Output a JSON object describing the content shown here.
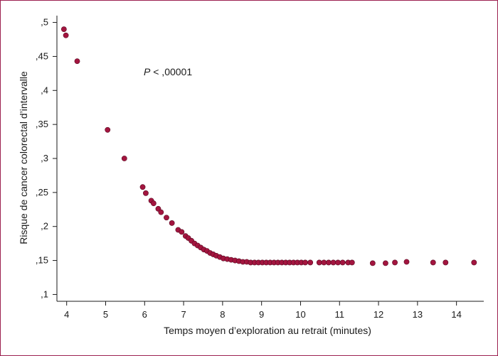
{
  "chart_data": {
    "type": "scatter",
    "xlabel": "Temps moyen d’exploration au retrait (minutes)",
    "ylabel": "Risque de cancer colorectal d’intervalle",
    "annotation": {
      "italic": "P",
      "rest": " < ,00001"
    },
    "xlim": [
      3.75,
      14.7
    ],
    "ylim": [
      0.09,
      0.51
    ],
    "x_ticks": [
      {
        "value": 4,
        "label": "4"
      },
      {
        "value": 5,
        "label": "5"
      },
      {
        "value": 6,
        "label": "6"
      },
      {
        "value": 7,
        "label": "7"
      },
      {
        "value": 8,
        "label": "8"
      },
      {
        "value": 9,
        "label": "9"
      },
      {
        "value": 10,
        "label": "10"
      },
      {
        "value": 11,
        "label": "11"
      },
      {
        "value": 12,
        "label": "12"
      },
      {
        "value": 13,
        "label": "13"
      },
      {
        "value": 14,
        "label": "14"
      }
    ],
    "y_ticks": [
      {
        "value": 0.1,
        "label": ",1"
      },
      {
        "value": 0.15,
        "label": ",15"
      },
      {
        "value": 0.2,
        "label": ",2"
      },
      {
        "value": 0.25,
        "label": ",25"
      },
      {
        "value": 0.3,
        "label": ",3"
      },
      {
        "value": 0.35,
        "label": ",35"
      },
      {
        "value": 0.4,
        "label": ",4"
      },
      {
        "value": 0.45,
        "label": ",45"
      },
      {
        "value": 0.5,
        "label": ",5"
      }
    ],
    "grid": false,
    "marker_color": "#a3153f",
    "points": [
      {
        "x": 3.93,
        "y": 0.49
      },
      {
        "x": 3.98,
        "y": 0.481
      },
      {
        "x": 4.27,
        "y": 0.443
      },
      {
        "x": 5.05,
        "y": 0.342
      },
      {
        "x": 5.48,
        "y": 0.3
      },
      {
        "x": 5.95,
        "y": 0.258
      },
      {
        "x": 6.03,
        "y": 0.249
      },
      {
        "x": 6.17,
        "y": 0.238
      },
      {
        "x": 6.23,
        "y": 0.234
      },
      {
        "x": 6.35,
        "y": 0.226
      },
      {
        "x": 6.42,
        "y": 0.221
      },
      {
        "x": 6.56,
        "y": 0.213
      },
      {
        "x": 6.7,
        "y": 0.205
      },
      {
        "x": 6.86,
        "y": 0.195
      },
      {
        "x": 6.95,
        "y": 0.192
      },
      {
        "x": 7.05,
        "y": 0.186
      },
      {
        "x": 7.12,
        "y": 0.183
      },
      {
        "x": 7.2,
        "y": 0.179
      },
      {
        "x": 7.28,
        "y": 0.175
      },
      {
        "x": 7.36,
        "y": 0.172
      },
      {
        "x": 7.44,
        "y": 0.169
      },
      {
        "x": 7.52,
        "y": 0.166
      },
      {
        "x": 7.6,
        "y": 0.164
      },
      {
        "x": 7.68,
        "y": 0.161
      },
      {
        "x": 7.76,
        "y": 0.159
      },
      {
        "x": 7.84,
        "y": 0.157
      },
      {
        "x": 7.93,
        "y": 0.155
      },
      {
        "x": 8.02,
        "y": 0.153
      },
      {
        "x": 8.12,
        "y": 0.152
      },
      {
        "x": 8.22,
        "y": 0.151
      },
      {
        "x": 8.32,
        "y": 0.15
      },
      {
        "x": 8.42,
        "y": 0.149
      },
      {
        "x": 8.52,
        "y": 0.148
      },
      {
        "x": 8.62,
        "y": 0.148
      },
      {
        "x": 8.72,
        "y": 0.147
      },
      {
        "x": 8.82,
        "y": 0.147
      },
      {
        "x": 8.92,
        "y": 0.147
      },
      {
        "x": 9.02,
        "y": 0.147
      },
      {
        "x": 9.12,
        "y": 0.147
      },
      {
        "x": 9.22,
        "y": 0.147
      },
      {
        "x": 9.32,
        "y": 0.147
      },
      {
        "x": 9.42,
        "y": 0.147
      },
      {
        "x": 9.52,
        "y": 0.147
      },
      {
        "x": 9.62,
        "y": 0.147
      },
      {
        "x": 9.72,
        "y": 0.147
      },
      {
        "x": 9.82,
        "y": 0.147
      },
      {
        "x": 9.92,
        "y": 0.147
      },
      {
        "x": 10.02,
        "y": 0.147
      },
      {
        "x": 10.12,
        "y": 0.147
      },
      {
        "x": 10.25,
        "y": 0.147
      },
      {
        "x": 10.48,
        "y": 0.147
      },
      {
        "x": 10.6,
        "y": 0.147
      },
      {
        "x": 10.72,
        "y": 0.147
      },
      {
        "x": 10.84,
        "y": 0.147
      },
      {
        "x": 10.96,
        "y": 0.147
      },
      {
        "x": 11.08,
        "y": 0.147
      },
      {
        "x": 11.22,
        "y": 0.147
      },
      {
        "x": 11.32,
        "y": 0.147
      },
      {
        "x": 11.85,
        "y": 0.146
      },
      {
        "x": 12.18,
        "y": 0.146
      },
      {
        "x": 12.42,
        "y": 0.147
      },
      {
        "x": 12.72,
        "y": 0.148
      },
      {
        "x": 13.4,
        "y": 0.147
      },
      {
        "x": 13.72,
        "y": 0.147
      },
      {
        "x": 14.45,
        "y": 0.147
      }
    ]
  }
}
